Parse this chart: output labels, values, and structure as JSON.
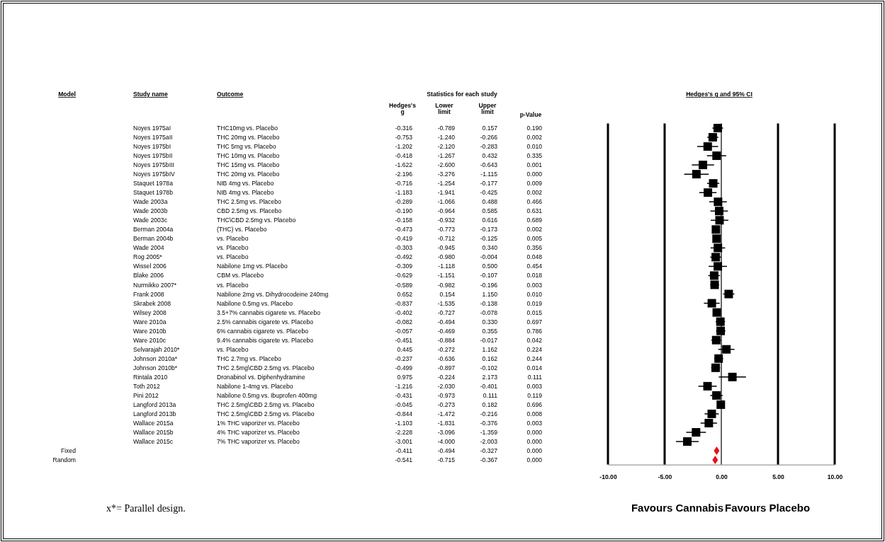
{
  "chart_data": [
    {
      "type": "other",
      "annotations": [
        "Model",
        "Study name",
        "Outcome",
        "Statistics for each study",
        "Hedges's g",
        "Lower limit",
        "Upper limit",
        "p-Value",
        "x*= Parallel design.",
        "Noyes 1975aI",
        "THC10mg vs. Placebo",
        "-0.316",
        "-0.789",
        "0.157",
        "0.190",
        "Noyes 1975aII",
        "THC 20mg vs. Placebo",
        "-0.753",
        "-1.240",
        "-0.266",
        "0.002",
        "Noyes 1975bI",
        "THC 5mg vs. Placebo",
        "-1.202",
        "-2.120",
        "-0.283",
        "0.010",
        "Noyes 1975bII",
        "THC 10mg vs. Placebo",
        "-0.418",
        "-1.267",
        "0.432",
        "0.335",
        "Noyes 1975bIII",
        "THC 15mg vs. Placebo",
        "-1.622",
        "-2.600",
        "-0.643",
        "0.001",
        "Noyes 1975bIV",
        "THC 20mg vs. Placebo",
        "-2.196",
        "-3.276",
        "-1.115",
        "0.000",
        "Staquet 1978a",
        "NIB 4mg vs. Placebo",
        "-0.716",
        "-1.254",
        "-0.177",
        "0.009",
        "Staquet 1978b",
        "NIB 4mg vs. Placebo",
        "-1.183",
        "-1.941",
        "-0.425",
        "0.002",
        "Wade 2003a",
        "THC 2.5mg vs. Placebo",
        "-0.289",
        "-1.066",
        "0.488",
        "0.466",
        "Wade 2003b",
        "CBD 2.5mg vs. Placebo",
        "-0.190",
        "-0.964",
        "0.585",
        "0.631",
        "Wade 2003c",
        "THC\\CBD 2.5mg vs. Placebo",
        "-0.158",
        "-0.932",
        "0.616",
        "0.689",
        "Berman 2004a",
        "(THC) vs. Placebo",
        "-0.473",
        "-0.773",
        "-0.173",
        "0.002",
        "Berman 2004b",
        "vs. Placebo",
        "-0.419",
        "-0.712",
        "-0.125",
        "0.005",
        "Wade 2004",
        "vs. Placebo",
        "-0.303",
        "-0.945",
        "0.340",
        "0.356",
        "Rog 2005*",
        "vs. Placebo",
        "-0.492",
        "-0.980",
        "-0.004",
        "0.048",
        "Wissel 2006",
        "Nabilone 1mg vs. Placebo",
        "-0.309",
        "-1.118",
        "0.500",
        "0.454",
        "Blake 2006",
        "CBM vs. Placebo",
        "-0.629",
        "-1.151",
        "-0.107",
        "0.018",
        "Nurmikko 2007*",
        "vs. Placebo",
        "-0.589",
        "-0.982",
        "-0.196",
        "0.003",
        "Frank 2008",
        "Nabilone 2mg vs. Dihydrocodeine 240mg",
        "0.652",
        "0.154",
        "1.150",
        "0.010",
        "Skrabek 2008",
        "Nabilone 0.5mg vs. Placebo",
        "-0.837",
        "-1.535",
        "-0.138",
        "0.019",
        "Wilsey 2008",
        "3.5+7% cannabis cigarete vs. Placebo",
        "-0.402",
        "-0.727",
        "-0.078",
        "0.015",
        "Ware 2010a",
        "2.5% cannabis cigarete vs. Placebo",
        "-0.082",
        "-0.494",
        "0.330",
        "0.697",
        "Ware 2010b",
        "6% cannabis cigarete vs. Placebo",
        "-0.057",
        "-0.469",
        "0.355",
        "0.786",
        "Ware 2010c",
        "9.4% cannabis cigarete vs. Placebo",
        "-0.451",
        "-0.884",
        "-0.017",
        "0.042",
        "Selvarajah 2010*",
        "vs. Placebo",
        "0.445",
        "-0.272",
        "1.162",
        "0.224",
        "Johnson 2010a*",
        "THC 2.7mg vs. Placebo",
        "-0.237",
        "-0.636",
        "0.162",
        "0.244",
        "Johnson 2010b*",
        "THC 2.5mg\\CBD 2.5mg vs. Placebo",
        "-0.499",
        "-0.897",
        "-0.102",
        "0.014",
        "Rintala 2010",
        "Dronabinol vs. Diphenhydramine",
        "0.975",
        "-0.224",
        "2.173",
        "0.111",
        "Toth 2012",
        "Nabilone 1-4mg vs. Placebo",
        "-1.216",
        "-2.030",
        "-0.401",
        "0.003",
        "Pini 2012",
        "Nabilone 0.5mg vs. Ibuprofen 400mg",
        "-0.431",
        "-0.973",
        "0.111",
        "0.119",
        "Langford 2013a",
        "THC 2.5mg\\CBD 2.5mg vs. Placebo",
        "-0.045",
        "-0.273",
        "0.182",
        "0.696",
        "Langford 2013b",
        "THC 2.5mg\\CBD 2.5mg vs. Placebo",
        "-0.844",
        "-1.472",
        "-0.216",
        "0.008",
        "Wallace 2015a",
        "1% THC vaporizer vs. Placebo",
        "-1.103",
        "-1.831",
        "-0.376",
        "0.003",
        "Wallace 2015b",
        "4% THC vaporizer vs. Placebo",
        "-2.228",
        "-3.096",
        "-1.359",
        "0.000",
        "Wallace 2015c",
        "7% THC vaporizer vs. Placebo",
        "-3.001",
        "-4.000",
        "-2.003",
        "0.000",
        "Fixed",
        "-0.411",
        "-0.494",
        "-0.327",
        "0.000",
        "Random",
        "-0.541",
        "-0.715",
        "-0.367",
        "0.000"
      ]
    },
    {
      "type": "scatter",
      "orientation": "horizontal",
      "grid": "x",
      "title": "Hedges's g and 95% CI",
      "annotations": [
        "Favours Cannabis",
        "Favours Placebo"
      ],
      "xlim": [
        -10,
        10
      ],
      "xticks": [
        {
          "value": -10,
          "label": "-10.00"
        },
        {
          "value": -5,
          "label": "-5.00"
        },
        {
          "value": 0,
          "label": "0.00"
        },
        {
          "value": 5,
          "label": "5.00"
        },
        {
          "value": 10,
          "label": "10.00"
        }
      ],
      "categories": [
        null,
        null,
        null,
        null,
        null,
        null,
        null,
        null,
        null,
        null,
        null,
        null,
        null,
        null,
        null,
        null,
        null,
        null,
        null,
        null,
        null,
        null,
        null,
        null,
        null,
        null,
        null,
        null,
        null,
        null,
        null,
        null,
        null,
        null,
        null,
        null,
        null
      ],
      "series": [
        {
          "color": "#000000",
          "marker": "square",
          "values": [
            -0.316,
            -0.753,
            -1.202,
            -0.418,
            -1.622,
            -2.196,
            -0.716,
            -1.183,
            -0.289,
            -0.19,
            -0.158,
            -0.473,
            -0.419,
            -0.303,
            -0.492,
            -0.309,
            -0.629,
            -0.589,
            0.652,
            -0.837,
            -0.402,
            -0.082,
            -0.057,
            -0.451,
            0.445,
            -0.237,
            -0.499,
            0.975,
            -1.216,
            -0.431,
            -0.045,
            -0.844,
            -1.103,
            -2.228,
            -3.001,
            null,
            null
          ],
          "errors": [
            [
              -0.789,
              0.157
            ],
            [
              -1.24,
              -0.266
            ],
            [
              -2.12,
              -0.283
            ],
            [
              -1.267,
              0.432
            ],
            [
              -2.6,
              -0.643
            ],
            [
              -3.276,
              -1.115
            ],
            [
              -1.254,
              -0.177
            ],
            [
              -1.941,
              -0.425
            ],
            [
              -1.066,
              0.488
            ],
            [
              -0.964,
              0.585
            ],
            [
              -0.932,
              0.616
            ],
            [
              -0.773,
              -0.173
            ],
            [
              -0.712,
              -0.125
            ],
            [
              -0.945,
              0.34
            ],
            [
              -0.98,
              -0.004
            ],
            [
              -1.118,
              0.5
            ],
            [
              -1.151,
              -0.107
            ],
            [
              -0.982,
              -0.196
            ],
            [
              0.154,
              1.15
            ],
            [
              -1.535,
              -0.138
            ],
            [
              -0.727,
              -0.078
            ],
            [
              -0.494,
              0.33
            ],
            [
              -0.469,
              0.355
            ],
            [
              -0.884,
              -0.017
            ],
            [
              -0.272,
              1.162
            ],
            [
              -0.636,
              0.162
            ],
            [
              -0.897,
              -0.102
            ],
            [
              -0.224,
              2.173
            ],
            [
              -2.03,
              -0.401
            ],
            [
              -0.973,
              0.111
            ],
            [
              -0.273,
              0.182
            ],
            [
              -1.472,
              -0.216
            ],
            [
              -1.831,
              -0.376
            ],
            [
              -3.096,
              -1.359
            ],
            [
              -4.0,
              -2.003
            ],
            null,
            null
          ]
        },
        {
          "color": "#e8101a",
          "marker": "diamond",
          "values": [
            null,
            null,
            null,
            null,
            null,
            null,
            null,
            null,
            null,
            null,
            null,
            null,
            null,
            null,
            null,
            null,
            null,
            null,
            null,
            null,
            null,
            null,
            null,
            null,
            null,
            null,
            null,
            null,
            null,
            null,
            null,
            null,
            null,
            null,
            null,
            -0.411,
            -0.541
          ],
          "errors": [
            null,
            null,
            null,
            null,
            null,
            null,
            null,
            null,
            null,
            null,
            null,
            null,
            null,
            null,
            null,
            null,
            null,
            null,
            null,
            null,
            null,
            null,
            null,
            null,
            null,
            null,
            null,
            null,
            null,
            null,
            null,
            null,
            null,
            null,
            null,
            [
              -0.494,
              -0.327
            ],
            [
              -0.715,
              -0.367
            ]
          ]
        }
      ]
    }
  ]
}
